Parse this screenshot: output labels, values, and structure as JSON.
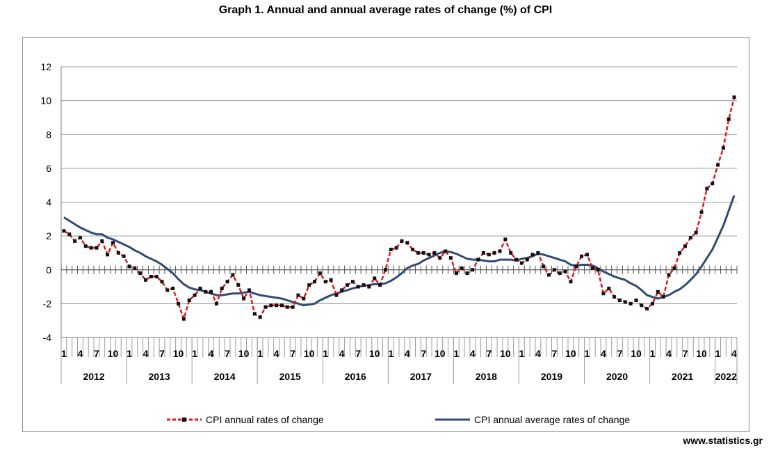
{
  "title": "Graph 1. Annual and annual average rates of change (%) of CPI",
  "source": "www.statistics.gr",
  "chart_data": {
    "type": "line",
    "title": "Graph 1. Annual and annual average rates of change (%) of CPI",
    "xlabel": "",
    "ylabel": "",
    "ylim": [
      -4,
      12
    ],
    "yticks": [
      -4,
      -2,
      0,
      2,
      4,
      6,
      8,
      10,
      12
    ],
    "grid": true,
    "legend_position": "bottom",
    "month_tick_labels": [
      "1",
      "4",
      "7",
      "10"
    ],
    "years": [
      "2012",
      "2013",
      "2014",
      "2015",
      "2016",
      "2017",
      "2018",
      "2019",
      "2020",
      "2021",
      "2022"
    ],
    "x_start": "2012-01",
    "x_end": "2022-04",
    "series": [
      {
        "name": "CPI annual rates of change",
        "color": "#e0191b",
        "style": "dashed-markers",
        "values": [
          2.3,
          2.1,
          1.7,
          1.9,
          1.4,
          1.3,
          1.3,
          1.7,
          0.9,
          1.6,
          1.0,
          0.8,
          0.2,
          0.1,
          -0.2,
          -0.6,
          -0.4,
          -0.4,
          -0.7,
          -1.2,
          -1.1,
          -2.0,
          -2.9,
          -1.8,
          -1.5,
          -1.1,
          -1.3,
          -1.3,
          -2.0,
          -1.1,
          -0.7,
          -0.3,
          -0.9,
          -1.7,
          -1.2,
          -2.6,
          -2.8,
          -2.2,
          -2.1,
          -2.1,
          -2.1,
          -2.2,
          -2.2,
          -1.5,
          -1.7,
          -0.9,
          -0.7,
          -0.2,
          -0.7,
          -0.6,
          -1.5,
          -1.2,
          -0.9,
          -0.7,
          -1.0,
          -0.9,
          -1.0,
          -0.5,
          -0.9,
          0.0,
          1.2,
          1.3,
          1.7,
          1.6,
          1.2,
          1.0,
          1.0,
          0.9,
          1.0,
          0.7,
          1.1,
          0.7,
          -0.2,
          0.1,
          -0.2,
          0.0,
          0.6,
          1.0,
          0.9,
          1.0,
          1.1,
          1.8,
          1.0,
          0.6,
          0.4,
          0.6,
          0.9,
          1.0,
          0.2,
          -0.3,
          0.0,
          -0.2,
          -0.1,
          -0.7,
          0.2,
          0.8,
          0.9,
          0.1,
          0.0,
          -1.4,
          -1.1,
          -1.6,
          -1.8,
          -1.9,
          -2.0,
          -1.8,
          -2.1,
          -2.3,
          -2.0,
          -1.3,
          -1.6,
          -0.3,
          0.1,
          1.0,
          1.4,
          1.9,
          2.2,
          3.4,
          4.8,
          5.1,
          6.2,
          7.2,
          8.9,
          10.2
        ]
      },
      {
        "name": "CPI annual average rates of change",
        "color": "#2f4b74",
        "style": "solid",
        "values": [
          3.1,
          2.9,
          2.7,
          2.5,
          2.35,
          2.2,
          2.1,
          2.1,
          1.9,
          1.8,
          1.65,
          1.5,
          1.35,
          1.15,
          1.0,
          0.8,
          0.65,
          0.5,
          0.3,
          0.05,
          -0.2,
          -0.55,
          -0.85,
          -1.05,
          -1.15,
          -1.2,
          -1.3,
          -1.4,
          -1.5,
          -1.5,
          -1.45,
          -1.4,
          -1.4,
          -1.35,
          -1.3,
          -1.4,
          -1.5,
          -1.55,
          -1.6,
          -1.65,
          -1.7,
          -1.8,
          -1.9,
          -2.0,
          -2.1,
          -2.05,
          -2.0,
          -1.8,
          -1.65,
          -1.5,
          -1.4,
          -1.3,
          -1.2,
          -1.1,
          -1.0,
          -0.95,
          -0.9,
          -0.85,
          -0.85,
          -0.8,
          -0.65,
          -0.45,
          -0.2,
          0.1,
          0.25,
          0.35,
          0.55,
          0.7,
          0.85,
          1.0,
          1.1,
          1.05,
          0.95,
          0.8,
          0.65,
          0.6,
          0.6,
          0.55,
          0.5,
          0.5,
          0.6,
          0.6,
          0.6,
          0.55,
          0.65,
          0.7,
          0.8,
          0.95,
          0.9,
          0.8,
          0.7,
          0.6,
          0.5,
          0.3,
          0.25,
          0.3,
          0.3,
          0.25,
          0.1,
          -0.1,
          -0.25,
          -0.4,
          -0.5,
          -0.6,
          -0.8,
          -0.95,
          -1.2,
          -1.5,
          -1.6,
          -1.7,
          -1.6,
          -1.5,
          -1.3,
          -1.15,
          -0.9,
          -0.6,
          -0.25,
          0.2,
          0.7,
          1.2,
          1.9,
          2.6,
          3.5,
          4.4
        ]
      }
    ]
  }
}
